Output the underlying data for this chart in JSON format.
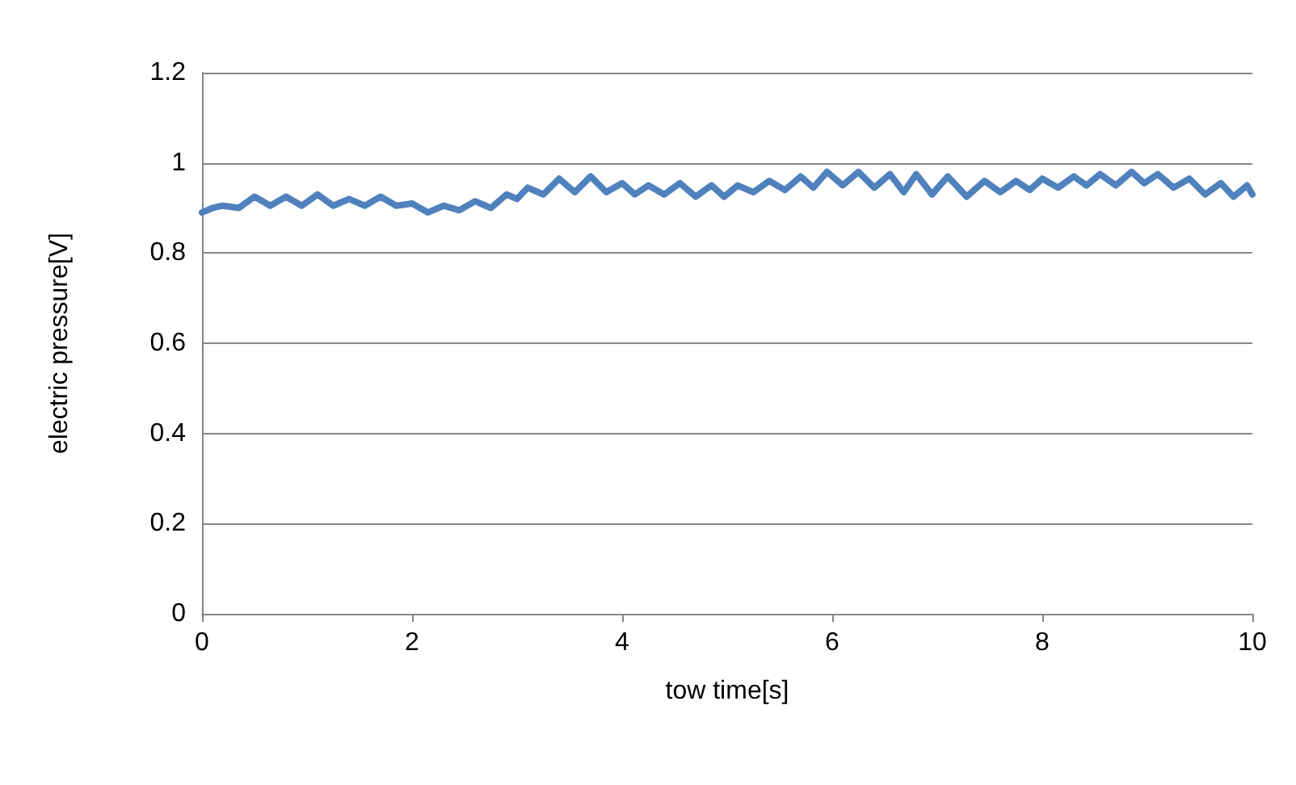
{
  "chart_data": {
    "type": "line",
    "xlabel": "tow time[s]",
    "ylabel": "electric pressure[V]",
    "xlim": [
      0,
      10
    ],
    "xticks": [
      0,
      2,
      4,
      6,
      8,
      10
    ],
    "ylim": [
      0,
      1.2
    ],
    "yticks": [
      0,
      0.2,
      0.4,
      0.6,
      0.8,
      1,
      1.2
    ],
    "grid": "y",
    "marker": "none",
    "line_style": "solid",
    "series": [
      {
        "color": "#4f81bd",
        "x": [
          0,
          0.1,
          0.2,
          0.35,
          0.5,
          0.65,
          0.8,
          0.95,
          1.1,
          1.25,
          1.4,
          1.55,
          1.7,
          1.85,
          2.0,
          2.15,
          2.3,
          2.45,
          2.6,
          2.75,
          2.9,
          3.0,
          3.1,
          3.25,
          3.4,
          3.55,
          3.7,
          3.85,
          4.0,
          4.12,
          4.25,
          4.4,
          4.55,
          4.7,
          4.85,
          4.97,
          5.1,
          5.25,
          5.4,
          5.55,
          5.7,
          5.82,
          5.95,
          6.1,
          6.25,
          6.4,
          6.55,
          6.68,
          6.8,
          6.95,
          7.1,
          7.28,
          7.45,
          7.6,
          7.75,
          7.88,
          8.0,
          8.15,
          8.3,
          8.42,
          8.55,
          8.7,
          8.85,
          8.97,
          9.1,
          9.25,
          9.4,
          9.55,
          9.7,
          9.82,
          9.95,
          10
        ],
        "values": [
          0.89,
          0.9,
          0.905,
          0.9,
          0.925,
          0.905,
          0.925,
          0.905,
          0.93,
          0.905,
          0.92,
          0.905,
          0.925,
          0.905,
          0.91,
          0.89,
          0.905,
          0.895,
          0.915,
          0.9,
          0.93,
          0.92,
          0.945,
          0.93,
          0.965,
          0.935,
          0.97,
          0.935,
          0.955,
          0.93,
          0.95,
          0.93,
          0.955,
          0.925,
          0.95,
          0.925,
          0.95,
          0.935,
          0.96,
          0.94,
          0.97,
          0.945,
          0.98,
          0.95,
          0.98,
          0.945,
          0.975,
          0.935,
          0.975,
          0.93,
          0.97,
          0.925,
          0.96,
          0.935,
          0.96,
          0.94,
          0.965,
          0.945,
          0.97,
          0.95,
          0.975,
          0.95,
          0.98,
          0.955,
          0.975,
          0.945,
          0.965,
          0.93,
          0.955,
          0.925,
          0.95,
          0.93
        ]
      }
    ]
  }
}
